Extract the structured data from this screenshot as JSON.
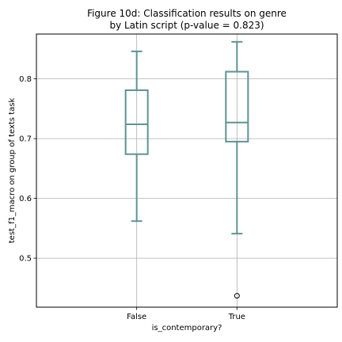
{
  "chart_data": {
    "type": "box",
    "title": "Figure 10d: Classification results on genre",
    "subtitle": "by Latin script (p-value = 0.823)",
    "xlabel": "is_contemporary?",
    "ylabel": "test_f1_macro on group of texts task",
    "categories": [
      "False",
      "True"
    ],
    "ylim": [
      0.418,
      0.875
    ],
    "y_ticks": [
      0.5,
      0.6,
      0.7,
      0.8
    ],
    "y_tick_labels": [
      "0.5",
      "0.6",
      "0.7",
      "0.8"
    ],
    "grid": true,
    "boxes": [
      {
        "category": "False",
        "whisker_low": 0.562,
        "q1": 0.674,
        "median": 0.724,
        "q3": 0.781,
        "whisker_high": 0.846,
        "outliers": []
      },
      {
        "category": "True",
        "whisker_low": 0.541,
        "q1": 0.695,
        "median": 0.727,
        "q3": 0.812,
        "whisker_high": 0.862,
        "outliers": [
          0.437
        ]
      }
    ],
    "box_color": "#5f9393",
    "grid_color": "#b0b0b0"
  }
}
